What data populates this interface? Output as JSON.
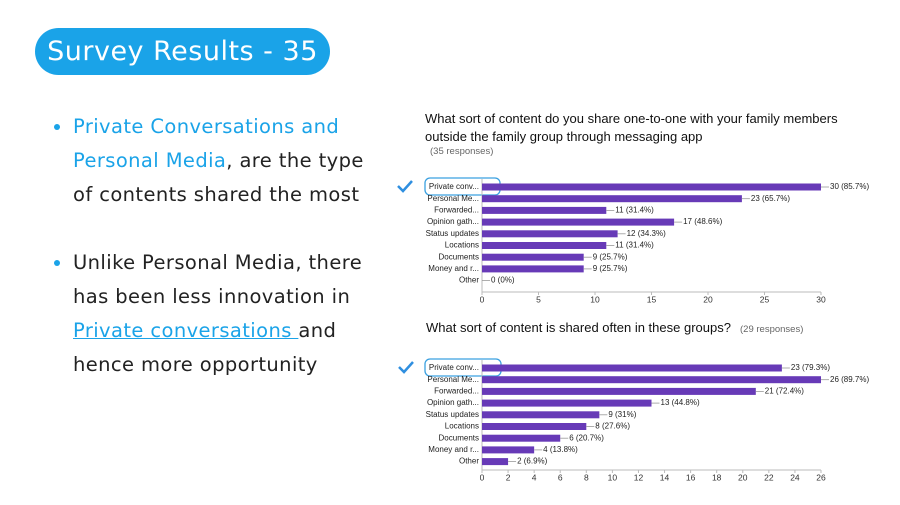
{
  "slide": {
    "title": "Survey Results - 35",
    "bullets": [
      {
        "segments": [
          {
            "text": "Private Conversations and Personal Media",
            "style": "highlight"
          },
          {
            "text": ", are the type of contents shared the most",
            "style": "plain"
          }
        ]
      },
      {
        "segments": [
          {
            "text": "Unlike Personal Media, there has been less innovation in ",
            "style": "plain"
          },
          {
            "text": "Private conversations ",
            "style": "link"
          },
          {
            "text": "and hence more opportunity",
            "style": "plain"
          }
        ]
      }
    ]
  },
  "chart_data": [
    {
      "type": "hbar",
      "title": "What sort of content do you share one-to-one with your family members outside the family group through messaging app",
      "subtitle": "(35 responses)",
      "categories": [
        "Private conv...",
        "Personal Me...",
        "Forwarded...",
        "Opinion gath...",
        "Status updates",
        "Locations",
        "Documents",
        "Money and r...",
        "Other"
      ],
      "values": [
        30,
        23,
        11,
        17,
        12,
        11,
        9,
        9,
        0
      ],
      "value_labels": [
        "30 (85.7%)",
        "23 (65.7%)",
        "11 (31.4%)",
        "17 (48.6%)",
        "12 (34.3%)",
        "11 (31.4%)",
        "9 (25.7%)",
        "9 (25.7%)",
        "0 (0%)"
      ],
      "color": "#673ab7",
      "xlim": [
        0,
        30
      ],
      "xticks": [
        0,
        5,
        10,
        15,
        20,
        25,
        30
      ]
    },
    {
      "type": "hbar",
      "title": "What sort of content is shared often in these groups?",
      "subtitle": "(29 responses)",
      "categories": [
        "Private conv...",
        "Personal Me...",
        "Forwarded...",
        "Opinion gath...",
        "Status updates",
        "Locations",
        "Documents",
        "Money and r...",
        "Other"
      ],
      "values": [
        23,
        26,
        21,
        13,
        9,
        8,
        6,
        4,
        2
      ],
      "value_labels": [
        "23 (79.3%)",
        "26 (89.7%)",
        "21 (72.4%)",
        "13 (44.8%)",
        "9 (31%)",
        "8 (27.6%)",
        "6 (20.7%)",
        "4 (13.8%)",
        "2 (6.9%)"
      ],
      "color": "#673ab7",
      "xlim": [
        0,
        26
      ],
      "xticks": [
        0,
        2,
        4,
        6,
        8,
        10,
        12,
        14,
        16,
        18,
        20,
        22,
        24,
        26
      ]
    }
  ]
}
